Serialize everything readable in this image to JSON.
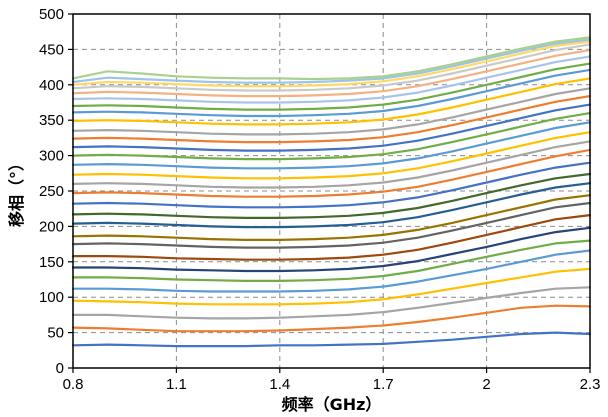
{
  "chart_data": {
    "type": "line",
    "xlabel": "频率（GHz）",
    "ylabel": "移相（°）",
    "xlim": [
      0.8,
      2.3
    ],
    "ylim": [
      0,
      500
    ],
    "x_ticks": [
      0.8,
      1.1,
      1.4,
      1.7,
      2.0,
      2.3
    ],
    "x_tick_labels": [
      "0.8",
      "1.1",
      "1.4",
      "1.7",
      "2",
      "2.3"
    ],
    "y_ticks": [
      0,
      50,
      100,
      150,
      200,
      250,
      300,
      350,
      400,
      450,
      500
    ],
    "y_tick_labels": [
      "0",
      "50",
      "100",
      "150",
      "200",
      "250",
      "300",
      "350",
      "400",
      "450",
      "500"
    ],
    "grid": true,
    "x": [
      0.8,
      0.9,
      1.0,
      1.1,
      1.2,
      1.3,
      1.4,
      1.5,
      1.6,
      1.7,
      1.8,
      1.9,
      2.0,
      2.1,
      2.2,
      2.3
    ],
    "series": [
      {
        "color": "#4472c4",
        "values": [
          32,
          33,
          32,
          31,
          31,
          31,
          32,
          32,
          33,
          34,
          37,
          40,
          44,
          48,
          50,
          48
        ]
      },
      {
        "color": "#ed7d31",
        "values": [
          57,
          56,
          54,
          52,
          52,
          52,
          53,
          55,
          57,
          60,
          65,
          71,
          78,
          85,
          88,
          87
        ]
      },
      {
        "color": "#a5a5a5",
        "values": [
          75,
          75,
          73,
          71,
          70,
          70,
          71,
          73,
          75,
          79,
          85,
          92,
          99,
          106,
          112,
          114
        ]
      },
      {
        "color": "#ffc000",
        "values": [
          95,
          94,
          93,
          91,
          90,
          90,
          90,
          91,
          93,
          97,
          104,
          112,
          120,
          128,
          136,
          140
        ]
      },
      {
        "color": "#5b9bd5",
        "values": [
          112,
          112,
          111,
          109,
          108,
          108,
          108,
          109,
          111,
          115,
          122,
          131,
          140,
          150,
          160,
          166
        ]
      },
      {
        "color": "#70ad47",
        "values": [
          128,
          128,
          127,
          125,
          124,
          123,
          123,
          124,
          126,
          130,
          137,
          147,
          157,
          167,
          176,
          180
        ]
      },
      {
        "color": "#264478",
        "values": [
          142,
          142,
          141,
          139,
          138,
          137,
          137,
          138,
          140,
          144,
          151,
          161,
          171,
          182,
          192,
          198
        ]
      },
      {
        "color": "#9e480e",
        "values": [
          158,
          158,
          157,
          155,
          154,
          153,
          153,
          154,
          156,
          160,
          167,
          177,
          188,
          199,
          210,
          216
        ]
      },
      {
        "color": "#636363",
        "values": [
          175,
          176,
          175,
          173,
          171,
          170,
          170,
          171,
          173,
          177,
          184,
          194,
          205,
          216,
          227,
          233
        ]
      },
      {
        "color": "#997300",
        "values": [
          186,
          187,
          186,
          184,
          182,
          181,
          181,
          182,
          184,
          188,
          195,
          205,
          216,
          227,
          238,
          244
        ]
      },
      {
        "color": "#255e91",
        "values": [
          204,
          205,
          204,
          202,
          200,
          199,
          199,
          200,
          202,
          206,
          213,
          223,
          234,
          245,
          255,
          261
        ]
      },
      {
        "color": "#43682b",
        "values": [
          217,
          218,
          217,
          215,
          213,
          212,
          212,
          213,
          215,
          219,
          226,
          236,
          247,
          258,
          268,
          274
        ]
      },
      {
        "color": "#4472c4",
        "values": [
          232,
          233,
          232,
          230,
          228,
          227,
          227,
          228,
          230,
          234,
          241,
          251,
          262,
          273,
          283,
          290
        ]
      },
      {
        "color": "#ed7d31",
        "values": [
          247,
          248,
          247,
          245,
          243,
          242,
          242,
          243,
          245,
          249,
          256,
          266,
          277,
          288,
          299,
          308
        ]
      },
      {
        "color": "#a5a5a5",
        "values": [
          260,
          261,
          260,
          258,
          256,
          255,
          255,
          256,
          258,
          262,
          269,
          279,
          290,
          301,
          312,
          320
        ]
      },
      {
        "color": "#ffc000",
        "values": [
          273,
          274,
          273,
          271,
          269,
          268,
          268,
          269,
          271,
          275,
          282,
          292,
          303,
          314,
          325,
          333
        ]
      },
      {
        "color": "#5b9bd5",
        "values": [
          287,
          288,
          287,
          285,
          283,
          282,
          282,
          283,
          285,
          289,
          296,
          306,
          317,
          328,
          339,
          347
        ]
      },
      {
        "color": "#70ad47",
        "values": [
          300,
          301,
          300,
          298,
          296,
          295,
          295,
          296,
          298,
          302,
          309,
          319,
          330,
          341,
          352,
          360
        ]
      },
      {
        "color": "#4472c4",
        "values": [
          312,
          313,
          312,
          310,
          308,
          307,
          307,
          308,
          310,
          314,
          321,
          331,
          342,
          353,
          364,
          372
        ]
      },
      {
        "color": "#ed7d31",
        "values": [
          324,
          325,
          324,
          322,
          320,
          319,
          319,
          320,
          322,
          326,
          333,
          343,
          354,
          365,
          376,
          384
        ]
      },
      {
        "color": "#a5a5a5",
        "values": [
          335,
          336,
          335,
          333,
          331,
          330,
          330,
          331,
          333,
          337,
          344,
          354,
          365,
          376,
          387,
          395
        ]
      },
      {
        "color": "#ffc000",
        "values": [
          349,
          350,
          349,
          347,
          345,
          344,
          344,
          345,
          347,
          351,
          358,
          368,
          379,
          390,
          401,
          409
        ]
      },
      {
        "color": "#5b9bd5",
        "values": [
          361,
          362,
          361,
          359,
          357,
          356,
          356,
          357,
          359,
          363,
          370,
          380,
          391,
          402,
          413,
          421
        ]
      },
      {
        "color": "#70ad47",
        "values": [
          370,
          371,
          370,
          368,
          366,
          365,
          365,
          366,
          368,
          372,
          379,
          389,
          400,
          411,
          422,
          430
        ]
      },
      {
        "color": "#a9c4e8",
        "values": [
          380,
          381,
          380,
          378,
          376,
          375,
          375,
          376,
          378,
          382,
          389,
          399,
          410,
          421,
          432,
          440
        ]
      },
      {
        "color": "#f4b183",
        "values": [
          388,
          390,
          389,
          387,
          385,
          384,
          384,
          385,
          387,
          391,
          398,
          408,
          419,
          430,
          441,
          449
        ]
      },
      {
        "color": "#c9c9c9",
        "values": [
          395,
          398,
          397,
          395,
          393,
          392,
          392,
          393,
          395,
          399,
          406,
          416,
          427,
          438,
          449,
          457
        ]
      },
      {
        "color": "#ffd966",
        "values": [
          400,
          404,
          403,
          401,
          399,
          398,
          398,
          399,
          401,
          405,
          412,
          422,
          433,
          444,
          455,
          461
        ]
      },
      {
        "color": "#9dc3e6",
        "values": [
          404,
          410,
          408,
          406,
          404,
          403,
          403,
          404,
          406,
          409,
          416,
          426,
          437,
          448,
          458,
          464
        ]
      },
      {
        "color": "#a9d18e",
        "values": [
          409,
          419,
          416,
          412,
          410,
          409,
          409,
          408,
          409,
          412,
          419,
          429,
          440,
          451,
          461,
          467
        ]
      }
    ]
  }
}
